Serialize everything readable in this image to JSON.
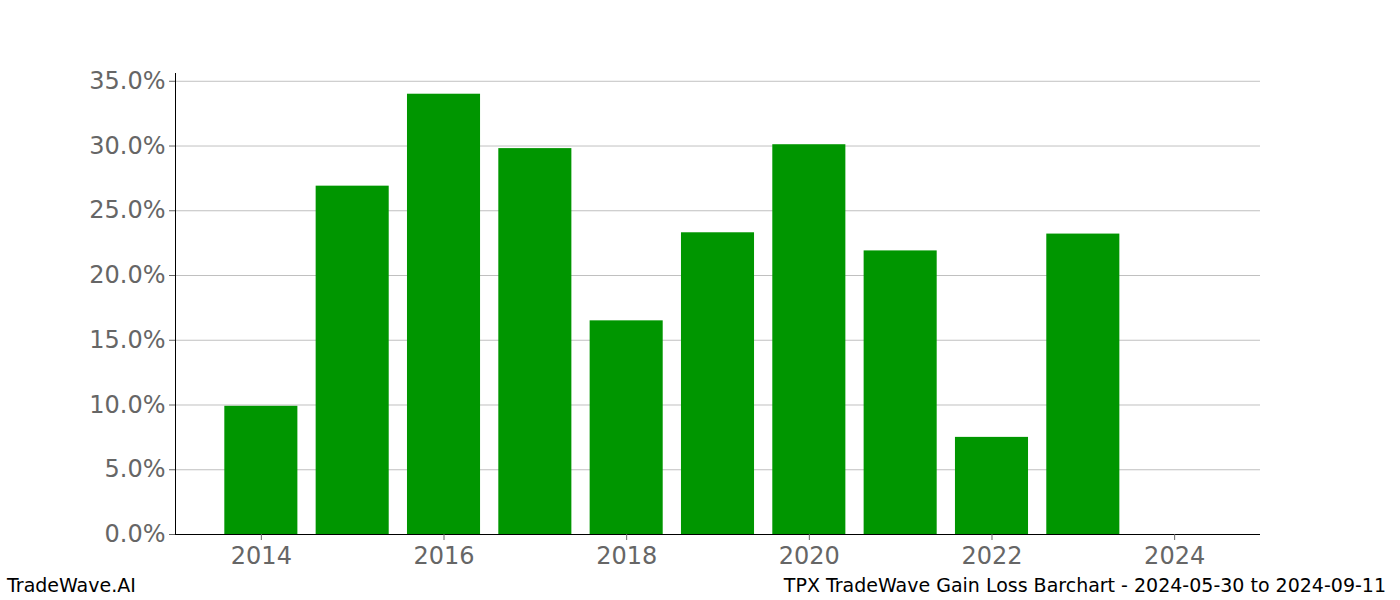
{
  "chart_data": {
    "type": "bar",
    "categories": [
      2014,
      2015,
      2016,
      2017,
      2018,
      2019,
      2020,
      2021,
      2022,
      2023,
      2024
    ],
    "values": [
      9.9,
      26.9,
      34.0,
      29.8,
      16.5,
      23.3,
      30.1,
      21.9,
      7.5,
      23.2,
      0
    ],
    "color": "#009600",
    "xlim": [
      2013.06,
      2024.94
    ],
    "xticks": [
      2014,
      2016,
      2018,
      2020,
      2022,
      2024
    ],
    "ylim": [
      0,
      35.6
    ],
    "yticks": [
      {
        "value": 0,
        "label": "0.0%"
      },
      {
        "value": 5,
        "label": "5.0%"
      },
      {
        "value": 10,
        "label": "10.0%"
      },
      {
        "value": 15,
        "label": "15.0%"
      },
      {
        "value": 20,
        "label": "20.0%"
      },
      {
        "value": 25,
        "label": "25.0%"
      },
      {
        "value": 30,
        "label": "30.0%"
      },
      {
        "value": 35,
        "label": "35.0%"
      }
    ],
    "grid": true,
    "caption_left": "TradeWave.AI",
    "caption_right": "TPX TradeWave Gain Loss Barchart - 2024-05-30 to 2024-09-11"
  }
}
